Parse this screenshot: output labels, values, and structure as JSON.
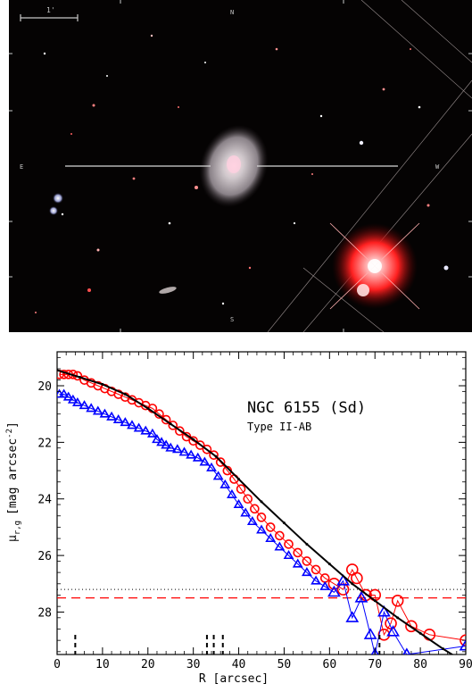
{
  "image": {
    "scale_bar_label": "1'",
    "compass": {
      "north": "N",
      "east": "E",
      "west": "W",
      "south": "S"
    }
  },
  "chart_data": {
    "type": "scatter",
    "title": "NGC 6155 (Sd)",
    "subtitle": "Type II-AB",
    "xlabel": "R [arcsec]",
    "ylabel": "μ_{r,g} [mag arcsec^-2]",
    "ylabel_main": "μ",
    "ylabel_sub": "r,g",
    "ylabel_unit": "[mag arcsec",
    "ylabel_exp": "-2",
    "ylabel_close": "]",
    "xlim": [
      0,
      90
    ],
    "ylim": [
      29.5,
      18.8
    ],
    "x_ticks": [
      0,
      10,
      20,
      30,
      40,
      50,
      60,
      70,
      80,
      90
    ],
    "y_ticks": [
      20,
      22,
      24,
      26,
      28
    ],
    "break_marks_R": [
      4,
      33,
      34.5,
      36.5,
      71
    ],
    "limits": {
      "dotted_black": 27.2,
      "dashed_red": 27.5
    },
    "colors": {
      "r_band": "#ff0000",
      "g_band": "#0000ff",
      "model": "#000000"
    },
    "series": [
      {
        "band": "r",
        "marker": "circle",
        "R": [
          0.5,
          1.5,
          2.5,
          3.5,
          4.5,
          6,
          7.5,
          9,
          10.5,
          12,
          13.5,
          15,
          16.5,
          18,
          19.5,
          21,
          22.5,
          24,
          25.5,
          27,
          28.5,
          30,
          31.5,
          33,
          34.5,
          36,
          37.5,
          39,
          40.5,
          42,
          43.5,
          45,
          47,
          49,
          51,
          53,
          55,
          57,
          59,
          61,
          63,
          65,
          66,
          68,
          70,
          72,
          73.5,
          75,
          78,
          82,
          90
        ],
        "mu": [
          19.6,
          19.6,
          19.6,
          19.6,
          19.65,
          19.8,
          19.9,
          20.0,
          20.1,
          20.2,
          20.3,
          20.4,
          20.5,
          20.6,
          20.7,
          20.8,
          21.0,
          21.2,
          21.4,
          21.6,
          21.8,
          21.95,
          22.1,
          22.25,
          22.45,
          22.7,
          23.0,
          23.3,
          23.65,
          24.0,
          24.35,
          24.65,
          25.0,
          25.3,
          25.6,
          25.9,
          26.2,
          26.5,
          26.8,
          27.0,
          27.2,
          26.5,
          26.8,
          27.4,
          27.4,
          28.8,
          28.4,
          27.6,
          28.5,
          28.8,
          29.0
        ]
      },
      {
        "band": "g",
        "marker": "triangle",
        "R": [
          0.5,
          1.5,
          2.5,
          3.5,
          4.5,
          6,
          7.5,
          9,
          10.5,
          12,
          13.5,
          15,
          16.5,
          18,
          19.5,
          21,
          22,
          23,
          24,
          25,
          26.5,
          28,
          29.5,
          31,
          32.5,
          34,
          35.5,
          37,
          38.5,
          40,
          41.5,
          43,
          45,
          47,
          49,
          51,
          53,
          55,
          57,
          59,
          61,
          63,
          65,
          67,
          69,
          70,
          72,
          74,
          77,
          90
        ],
        "mu": [
          20.3,
          20.3,
          20.4,
          20.5,
          20.6,
          20.7,
          20.8,
          20.9,
          21.0,
          21.1,
          21.2,
          21.3,
          21.4,
          21.5,
          21.6,
          21.7,
          21.9,
          22.0,
          22.1,
          22.2,
          22.25,
          22.35,
          22.45,
          22.55,
          22.7,
          22.9,
          23.2,
          23.5,
          23.85,
          24.2,
          24.5,
          24.8,
          25.1,
          25.4,
          25.7,
          26.0,
          26.3,
          26.6,
          26.9,
          27.1,
          27.3,
          26.9,
          28.2,
          27.5,
          28.8,
          29.5,
          28.0,
          28.7,
          29.5,
          29.2
        ]
      },
      {
        "band": "model",
        "marker": "line",
        "R": [
          0,
          5,
          10,
          15,
          20,
          25,
          30,
          35,
          40,
          45,
          50,
          55,
          60,
          65,
          70,
          75,
          80,
          85,
          90
        ],
        "mu": [
          19.45,
          19.7,
          19.95,
          20.3,
          20.8,
          21.35,
          21.9,
          22.5,
          23.3,
          24.1,
          24.85,
          25.6,
          26.3,
          27.0,
          27.6,
          28.2,
          28.75,
          29.3,
          29.8
        ]
      }
    ]
  }
}
